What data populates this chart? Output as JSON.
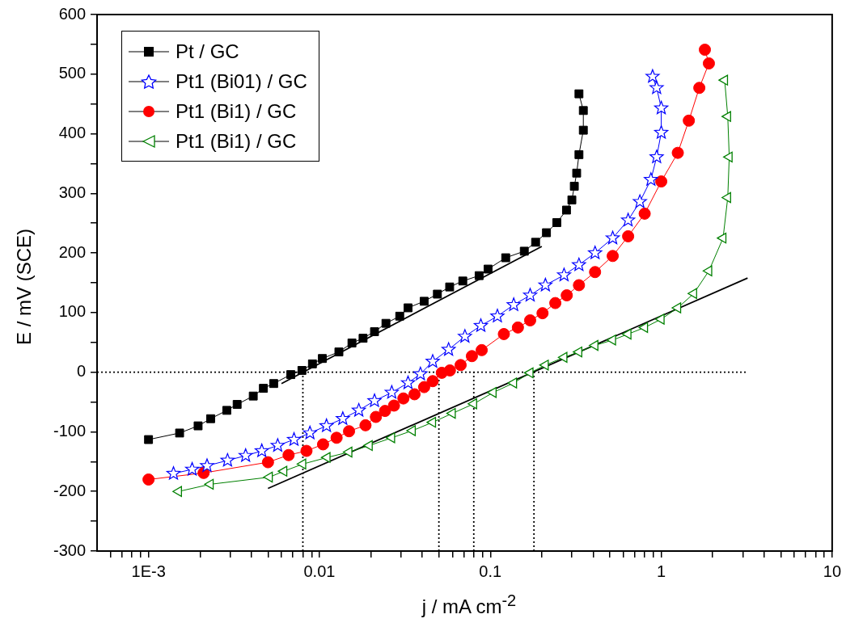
{
  "chart_data": {
    "type": "line",
    "xlabel": "j / mA cm$^{-2}$",
    "ylabel": "E / mV (SCE)",
    "log": "x",
    "xlim": [
      0.0005,
      10
    ],
    "ylim": [
      -300,
      600
    ],
    "xticks": [
      {
        "value": 0.0006,
        "label": null
      },
      {
        "value": 0.0007,
        "label": null
      },
      {
        "value": 0.0008,
        "label": null
      },
      {
        "value": 0.0009,
        "label": null
      },
      {
        "value": 0.001,
        "label": "1E-3"
      },
      {
        "value": 0.002,
        "label": null
      },
      {
        "value": 0.003,
        "label": null
      },
      {
        "value": 0.004,
        "label": null
      },
      {
        "value": 0.005,
        "label": null
      },
      {
        "value": 0.006,
        "label": null
      },
      {
        "value": 0.007,
        "label": null
      },
      {
        "value": 0.008,
        "label": null
      },
      {
        "value": 0.009,
        "label": null
      },
      {
        "value": 0.01,
        "label": "0.01"
      },
      {
        "value": 0.02,
        "label": null
      },
      {
        "value": 0.03,
        "label": null
      },
      {
        "value": 0.04,
        "label": null
      },
      {
        "value": 0.05,
        "label": null
      },
      {
        "value": 0.06,
        "label": null
      },
      {
        "value": 0.07,
        "label": null
      },
      {
        "value": 0.08,
        "label": null
      },
      {
        "value": 0.09,
        "label": null
      },
      {
        "value": 0.1,
        "label": "0.1"
      },
      {
        "value": 0.2,
        "label": null
      },
      {
        "value": 0.3,
        "label": null
      },
      {
        "value": 0.4,
        "label": null
      },
      {
        "value": 0.5,
        "label": null
      },
      {
        "value": 0.6,
        "label": null
      },
      {
        "value": 0.7,
        "label": null
      },
      {
        "value": 0.8,
        "label": null
      },
      {
        "value": 0.9,
        "label": null
      },
      {
        "value": 1,
        "label": "1"
      },
      {
        "value": 2,
        "label": null
      },
      {
        "value": 3,
        "label": null
      },
      {
        "value": 4,
        "label": null
      },
      {
        "value": 5,
        "label": null
      },
      {
        "value": 6,
        "label": null
      },
      {
        "value": 7,
        "label": null
      },
      {
        "value": 8,
        "label": null
      },
      {
        "value": 9,
        "label": null
      },
      {
        "value": 10,
        "label": "10"
      }
    ],
    "yticks": [
      -300,
      {
        "value": -250,
        "label": null
      },
      -200,
      {
        "value": -150,
        "label": null
      },
      -100,
      {
        "value": -50,
        "label": null
      },
      0,
      {
        "value": 50,
        "label": null
      },
      100,
      {
        "value": 150,
        "label": null
      },
      200,
      {
        "value": 250,
        "label": null
      },
      300,
      {
        "value": 350,
        "label": null
      },
      400,
      {
        "value": 450,
        "label": null
      },
      500,
      {
        "value": 550,
        "label": null
      },
      600
    ],
    "grid": false,
    "legend": "top left",
    "line_style": "solid",
    "series": [
      {
        "name": "Pt / GC",
        "color": "#000000",
        "marker": "square",
        "x": [
          0.001,
          0.00152,
          0.00195,
          0.00231,
          0.00287,
          0.0033,
          0.0041,
          0.0047,
          0.0054,
          0.0068,
          0.0079,
          0.0091,
          0.0104,
          0.013,
          0.0155,
          0.018,
          0.021,
          0.0245,
          0.0295,
          0.033,
          0.041,
          0.049,
          0.0578,
          0.069,
          0.086,
          0.097,
          0.123,
          0.158,
          0.184,
          0.213,
          0.245,
          0.279,
          0.3,
          0.31,
          0.32,
          0.33,
          0.35,
          0.35,
          0.33
        ],
        "values": [
          -113,
          -102,
          -90,
          -78,
          -64,
          -54,
          -40,
          -27,
          -19,
          -4,
          3,
          14,
          23,
          34,
          49,
          57,
          68,
          82,
          94,
          108,
          119,
          131,
          143,
          153,
          162,
          173,
          192,
          203,
          218,
          234,
          251,
          272,
          289,
          312,
          334,
          365,
          406,
          439,
          467
        ]
      },
      {
        "name": "Pt1 (Bi01) / GC",
        "color": "#0000ff",
        "marker": "star",
        "x": [
          0.0014,
          0.0018,
          0.0022,
          0.0029,
          0.0037,
          0.0046,
          0.0057,
          0.0071,
          0.0088,
          0.011,
          0.0137,
          0.017,
          0.021,
          0.0265,
          0.033,
          0.039,
          0.046,
          0.057,
          0.071,
          0.088,
          0.11,
          0.137,
          0.171,
          0.21,
          0.27,
          0.33,
          0.41,
          0.52,
          0.64,
          0.75,
          0.87,
          0.94,
          1.0,
          1.0,
          0.94,
          0.89
        ],
        "values": [
          -170,
          -163,
          -157,
          -148,
          -140,
          -132,
          -123,
          -113,
          -102,
          -90,
          -78,
          -64,
          -48,
          -34,
          -18,
          -3,
          18,
          38,
          60,
          78,
          94,
          113,
          129,
          146,
          163,
          180,
          200,
          225,
          255,
          286,
          323,
          361,
          402,
          443,
          477,
          496
        ]
      },
      {
        "name": "Pt1 (Bi1) / GC",
        "color": "#ff0000",
        "marker": "circle",
        "x": [
          0.001,
          0.0021,
          0.005,
          0.0066,
          0.0084,
          0.0105,
          0.0126,
          0.0149,
          0.0186,
          0.0214,
          0.0242,
          0.0273,
          0.031,
          0.036,
          0.041,
          0.046,
          0.052,
          0.058,
          0.067,
          0.078,
          0.089,
          0.12,
          0.145,
          0.171,
          0.202,
          0.24,
          0.28,
          0.33,
          0.41,
          0.52,
          0.64,
          0.8,
          1.0,
          1.25,
          1.45,
          1.67,
          1.9,
          1.8
        ],
        "values": [
          -180,
          -169,
          -151,
          -139,
          -132,
          -121,
          -110,
          -99,
          -89,
          -75,
          -65,
          -56,
          -44,
          -37,
          -25,
          -15,
          -1,
          3,
          12,
          27,
          37,
          64,
          75,
          87,
          99,
          116,
          129,
          146,
          168,
          195,
          228,
          266,
          320,
          368,
          422,
          477,
          518,
          541
        ]
      },
      {
        "name": "Pt1 (Bi1) / GC",
        "color": "#008000",
        "marker": "triangle",
        "x": [
          0.0015,
          0.0023,
          0.0051,
          0.0062,
          0.008,
          0.0111,
          0.0149,
          0.0196,
          0.0265,
          0.035,
          0.046,
          0.06,
          0.08,
          0.104,
          0.137,
          0.171,
          0.21,
          0.27,
          0.33,
          0.41,
          0.52,
          0.64,
          0.8,
          1.0,
          1.25,
          1.55,
          1.9,
          2.3,
          2.45,
          2.5,
          2.45,
          2.35
        ],
        "values": [
          -200,
          -188,
          -176,
          -166,
          -154,
          -143,
          -134,
          -123,
          -110,
          -98,
          -84,
          -69,
          -53,
          -34,
          -18,
          -1,
          12,
          25,
          34,
          45,
          54,
          64,
          75,
          89,
          108,
          132,
          170,
          225,
          293,
          361,
          429,
          490
        ]
      },
      {
        "type": "line",
        "color": "#000000",
        "marker": "none",
        "x": [
          0.006,
          0.2
        ],
        "values": [
          -19,
          211
        ]
      },
      {
        "type": "line",
        "color": "#000000",
        "marker": "none",
        "x": [
          0.005,
          3.2
        ],
        "values": [
          -195,
          158
        ]
      },
      {
        "type": "line",
        "color": "#000000",
        "marker": "none",
        "line_style": "dotted",
        "x": [
          0.0005,
          3.2
        ],
        "values": [
          0,
          0
        ]
      },
      {
        "type": "line",
        "color": "#000000",
        "marker": "none",
        "line_style": "dotted",
        "x": [
          0.008,
          0.008
        ],
        "values": [
          -300,
          0
        ]
      },
      {
        "type": "line",
        "color": "#000000",
        "marker": "none",
        "line_style": "dotted",
        "x": [
          0.05,
          0.05
        ],
        "values": [
          -300,
          0
        ]
      },
      {
        "type": "line",
        "color": "#000000",
        "marker": "none",
        "line_style": "dotted",
        "x": [
          0.08,
          0.08
        ],
        "values": [
          -300,
          0
        ]
      },
      {
        "type": "line",
        "color": "#000000",
        "marker": "none",
        "line_style": "dotted",
        "x": [
          0.18,
          0.18
        ],
        "values": [
          -300,
          0
        ]
      }
    ]
  }
}
